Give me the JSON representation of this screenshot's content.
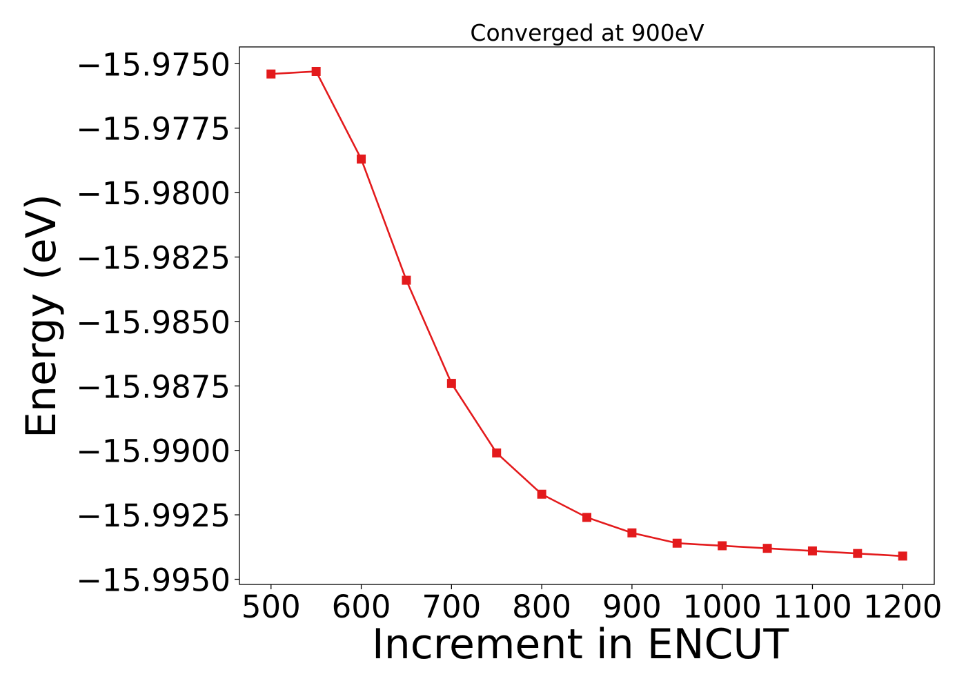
{
  "chart_data": {
    "type": "line",
    "title": "Converged at 900eV",
    "xlabel": "Increment in ENCUT",
    "ylabel": "Energy (eV)",
    "xlim": [
      465,
      1235
    ],
    "ylim": [
      -15.9952,
      -15.97435
    ],
    "xticks": [
      500,
      600,
      700,
      800,
      900,
      1000,
      1100,
      1200
    ],
    "xtick_labels": [
      "500",
      "600",
      "700",
      "800",
      "900",
      "1000",
      "1100",
      "1200"
    ],
    "yticks": [
      -15.975,
      -15.9775,
      -15.98,
      -15.9825,
      -15.985,
      -15.9875,
      -15.99,
      -15.9925,
      -15.995
    ],
    "ytick_labels": [
      "−15.9750",
      "−15.9775",
      "−15.9800",
      "−15.9825",
      "−15.9850",
      "−15.9875",
      "−15.9900",
      "−15.9925",
      "−15.9950"
    ],
    "grid": false,
    "series": [
      {
        "color": "#e31a1c",
        "marker": "square",
        "x": [
          500,
          550,
          600,
          650,
          700,
          750,
          800,
          850,
          900,
          950,
          1000,
          1050,
          1100,
          1150,
          1200
        ],
        "y": [
          -15.9754,
          -15.9753,
          -15.9787,
          -15.9834,
          -15.9874,
          -15.9901,
          -15.9917,
          -15.9926,
          -15.9932,
          -15.9936,
          -15.9937,
          -15.9938,
          -15.9939,
          -15.994,
          -15.9941
        ]
      }
    ]
  }
}
